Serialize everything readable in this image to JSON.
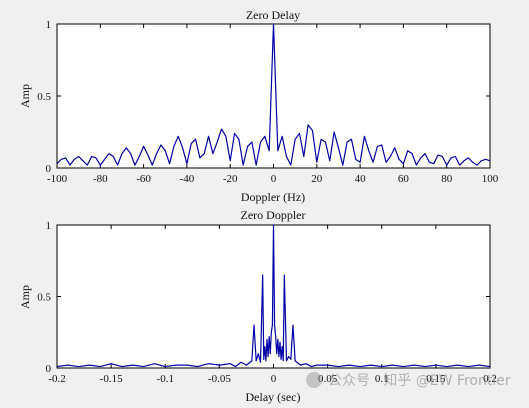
{
  "colors": {
    "line": "#0000a8",
    "axes": "#000000",
    "background": "#f0f0f0",
    "plot_bg": "#ffffff"
  },
  "watermark": {
    "text": "公众号 · 知乎 @EW Frontier",
    "icon": "wechat-icon"
  },
  "chart_data": [
    {
      "type": "line",
      "title": "Zero Delay",
      "xlabel": "Doppler (Hz)",
      "ylabel": "Amp",
      "xlim": [
        -100,
        100
      ],
      "ylim": [
        0,
        1
      ],
      "xticks": [
        "-100",
        "-80",
        "-60",
        "-40",
        "-20",
        "0",
        "20",
        "40",
        "60",
        "80",
        "100"
      ],
      "yticks": [
        "0",
        "0.5",
        "1"
      ],
      "grid": false,
      "series": [
        {
          "x": [
            -100,
            -98,
            -96,
            -94,
            -92,
            -90,
            -88,
            -86,
            -84,
            -82,
            -80,
            -78,
            -76,
            -74,
            -72,
            -70,
            -68,
            -66,
            -64,
            -62,
            -60,
            -58,
            -56,
            -54,
            -52,
            -50,
            -48,
            -46,
            -44,
            -42,
            -40,
            -38,
            -36,
            -34,
            -32,
            -30,
            -28,
            -26,
            -24,
            -22,
            -20,
            -18,
            -16,
            -14,
            -12,
            -10,
            -8,
            -6,
            -4,
            -2,
            0,
            2,
            4,
            6,
            8,
            10,
            12,
            14,
            16,
            18,
            20,
            22,
            24,
            26,
            28,
            30,
            32,
            34,
            36,
            38,
            40,
            42,
            44,
            46,
            48,
            50,
            52,
            54,
            56,
            58,
            60,
            62,
            64,
            66,
            68,
            70,
            72,
            74,
            76,
            78,
            80,
            82,
            84,
            86,
            88,
            90,
            92,
            94,
            96,
            98,
            100
          ],
          "y": [
            0.03,
            0.06,
            0.07,
            0.02,
            0.06,
            0.08,
            0.05,
            0.02,
            0.08,
            0.07,
            0.02,
            0.06,
            0.1,
            0.08,
            0.02,
            0.1,
            0.14,
            0.1,
            0.02,
            0.08,
            0.15,
            0.09,
            0.02,
            0.1,
            0.16,
            0.12,
            0.03,
            0.15,
            0.22,
            0.14,
            0.03,
            0.17,
            0.2,
            0.07,
            0.1,
            0.22,
            0.1,
            0.18,
            0.27,
            0.22,
            0.05,
            0.24,
            0.2,
            0.02,
            0.15,
            0.18,
            0.02,
            0.18,
            0.22,
            0.12,
            1.0,
            0.12,
            0.22,
            0.08,
            0.02,
            0.2,
            0.24,
            0.08,
            0.3,
            0.26,
            0.04,
            0.2,
            0.18,
            0.05,
            0.25,
            0.14,
            0.02,
            0.18,
            0.2,
            0.06,
            0.04,
            0.22,
            0.12,
            0.04,
            0.15,
            0.16,
            0.04,
            0.08,
            0.14,
            0.06,
            0.03,
            0.12,
            0.1,
            0.02,
            0.07,
            0.1,
            0.04,
            0.03,
            0.09,
            0.08,
            0.02,
            0.07,
            0.08,
            0.02,
            0.05,
            0.07,
            0.04,
            0.02,
            0.05,
            0.06,
            0.05
          ]
        }
      ]
    },
    {
      "type": "line",
      "title": "Zero Doppler",
      "xlabel": "Delay (sec)",
      "ylabel": "Amp",
      "xlim": [
        -0.2,
        0.2
      ],
      "ylim": [
        0,
        1
      ],
      "xticks": [
        "-0.2",
        "-0.15",
        "-0.1",
        "-0.05",
        "0",
        "0.05",
        "0.1",
        "0.15",
        "0.2"
      ],
      "yticks": [
        "0",
        "0.5",
        "1"
      ],
      "grid": false,
      "series": [
        {
          "x": [
            -0.2,
            -0.19,
            -0.18,
            -0.17,
            -0.16,
            -0.15,
            -0.14,
            -0.13,
            -0.12,
            -0.11,
            -0.1,
            -0.09,
            -0.08,
            -0.07,
            -0.06,
            -0.05,
            -0.04,
            -0.035,
            -0.03,
            -0.025,
            -0.02,
            -0.018,
            -0.016,
            -0.014,
            -0.012,
            -0.01,
            -0.009,
            -0.008,
            -0.007,
            -0.006,
            -0.005,
            -0.004,
            -0.003,
            -0.002,
            -0.001,
            0,
            0.001,
            0.002,
            0.003,
            0.004,
            0.005,
            0.006,
            0.007,
            0.008,
            0.009,
            0.01,
            0.012,
            0.014,
            0.016,
            0.018,
            0.02,
            0.025,
            0.03,
            0.035,
            0.04,
            0.05,
            0.06,
            0.07,
            0.08,
            0.09,
            0.1,
            0.11,
            0.12,
            0.13,
            0.14,
            0.15,
            0.16,
            0.17,
            0.18,
            0.19,
            0.2
          ],
          "y": [
            0.01,
            0.02,
            0.01,
            0.02,
            0.01,
            0.03,
            0.01,
            0.02,
            0.01,
            0.03,
            0.01,
            0.02,
            0.02,
            0.01,
            0.03,
            0.02,
            0.03,
            0.01,
            0.04,
            0.02,
            0.05,
            0.3,
            0.05,
            0.1,
            0.04,
            0.65,
            0.06,
            0.15,
            0.05,
            0.2,
            0.08,
            0.22,
            0.1,
            0.25,
            0.3,
            1.0,
            0.3,
            0.22,
            0.1,
            0.2,
            0.08,
            0.18,
            0.06,
            0.15,
            0.05,
            0.65,
            0.05,
            0.08,
            0.06,
            0.3,
            0.05,
            0.02,
            0.03,
            0.01,
            0.02,
            0.02,
            0.01,
            0.02,
            0.01,
            0.02,
            0.01,
            0.02,
            0.01,
            0.02,
            0.01,
            0.02,
            0.01,
            0.02,
            0.01,
            0.02,
            0.01
          ]
        }
      ]
    }
  ]
}
